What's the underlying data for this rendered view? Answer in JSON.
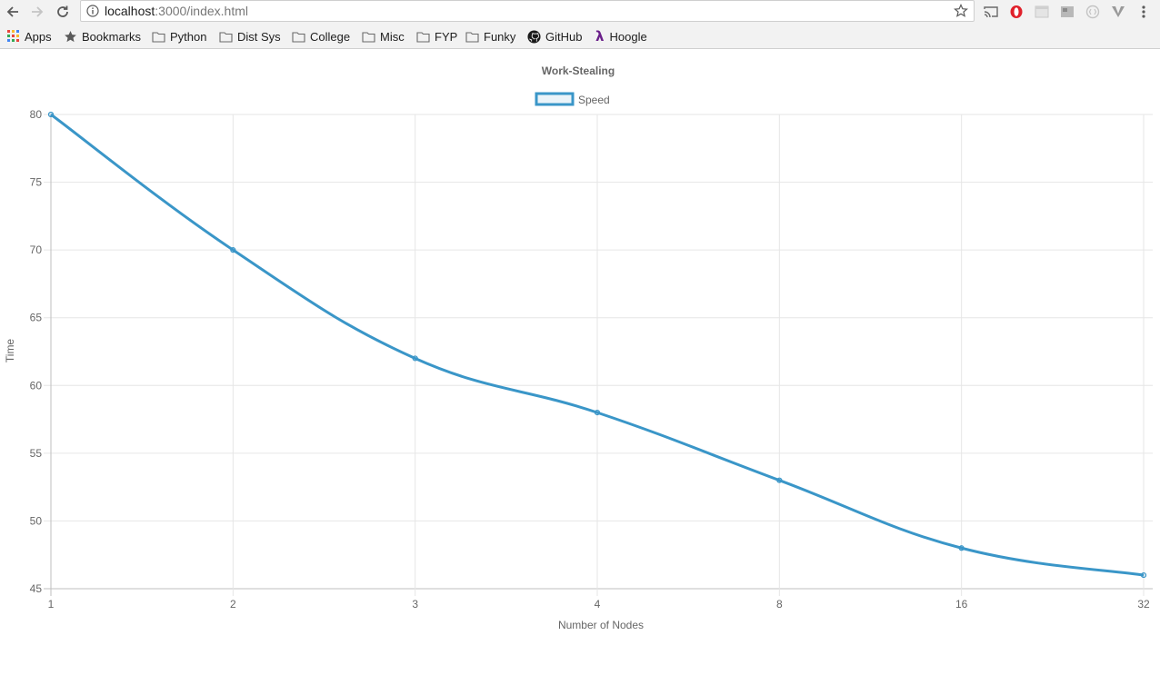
{
  "browser": {
    "url_host": "localhost",
    "url_path": ":3000/index.html",
    "bookmarks": [
      {
        "label": "Apps",
        "icon": "apps-grid-icon"
      },
      {
        "label": "Bookmarks",
        "icon": "star-icon"
      },
      {
        "label": "Python",
        "icon": "folder-icon"
      },
      {
        "label": "Dist Sys",
        "icon": "folder-icon"
      },
      {
        "label": "College",
        "icon": "folder-icon"
      },
      {
        "label": "Misc",
        "icon": "folder-icon"
      },
      {
        "label": "FYP",
        "icon": "folder-icon"
      },
      {
        "label": "Funky",
        "icon": "folder-icon"
      },
      {
        "label": "GitHub",
        "icon": "github-icon"
      },
      {
        "label": "Hoogle",
        "icon": "lambda-icon"
      }
    ],
    "extensions": [
      "cast-icon",
      "opera-icon",
      "extension-icon",
      "extension-icon",
      "extension-icon",
      "vivaldi-icon",
      "menu-dots-icon"
    ]
  },
  "chart_data": {
    "type": "line",
    "title": "Work-Stealing",
    "xlabel": "Number of Nodes",
    "ylabel": "Time",
    "categories": [
      "1",
      "2",
      "3",
      "4",
      "8",
      "16",
      "32"
    ],
    "series": [
      {
        "name": "Speed",
        "values": [
          80,
          70,
          62,
          58,
          53,
          48,
          46
        ],
        "color": "#3a96c8"
      }
    ],
    "ylim": [
      45,
      80
    ],
    "yticks": [
      45,
      50,
      55,
      60,
      65,
      70,
      75,
      80
    ],
    "grid": true,
    "legend": "top-center"
  }
}
